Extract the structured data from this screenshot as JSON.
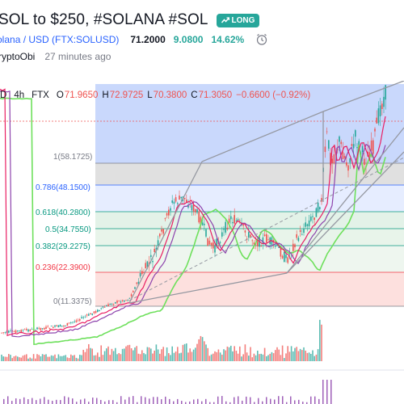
{
  "idea": {
    "title": "SOL to $250, #SOLANA #SOL",
    "badge": "LONG",
    "symbol_link": "olana / USD (FTX:SOLUSD)",
    "price": "71.2000",
    "change": "9.0800",
    "change_pct": "14.62%",
    "author": "ryptoObi",
    "time_ago": "27 minutes ago"
  },
  "legend": {
    "ticker": "D",
    "interval": "4h",
    "exchange": "FTX",
    "o_key": "O",
    "o_val": "71.9650",
    "h_key": "H",
    "h_val": "72.9725",
    "l_key": "L",
    "l_val": "70.3800",
    "c_key": "C",
    "c_val": "71.3050",
    "chg": "−0.6600 (−0.92%)"
  },
  "fib": [
    {
      "label": "1(58.1725)",
      "color": "#787b86"
    },
    {
      "label": "0.786(48.1500)",
      "color": "#2962ff"
    },
    {
      "label": "0.618(40.2800)",
      "color": "#089981"
    },
    {
      "label": "0.5(34.7550)",
      "color": "#089981"
    },
    {
      "label": "0.382(29.2275)",
      "color": "#089981"
    },
    {
      "label": "0.236(22.3900)",
      "color": "#f23645"
    },
    {
      "label": "0(11.3375)",
      "color": "#787b86"
    }
  ],
  "colors": {
    "up": "#26a69a",
    "down": "#ef5350",
    "accent": "#2962ff",
    "long": "#26a69a"
  }
}
